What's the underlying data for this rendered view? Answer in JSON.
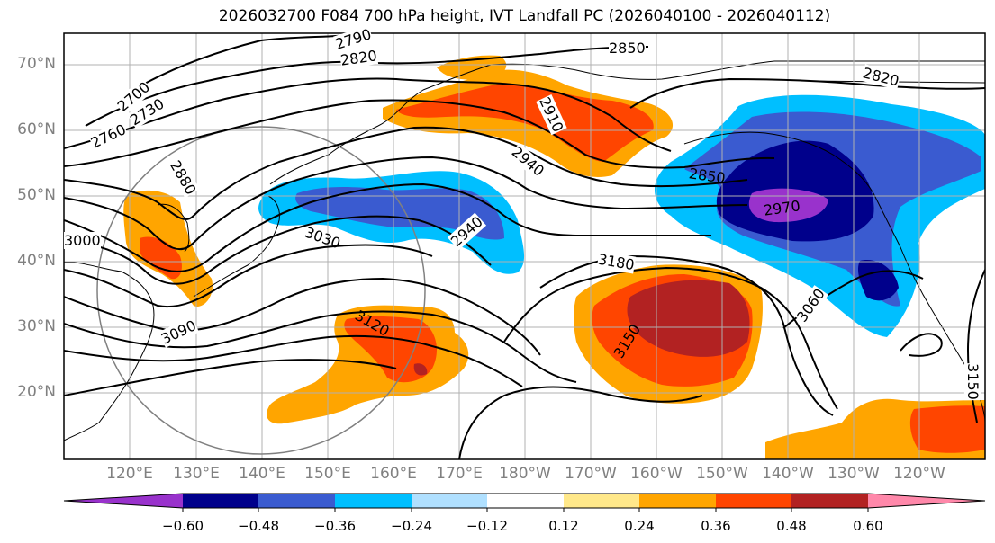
{
  "title": "2026032700 F084 700 hPa height, IVT Landfall PC (2026040100 - 2026040112)",
  "lat_labels": [
    "70°N",
    "60°N",
    "50°N",
    "40°N",
    "30°N",
    "20°N"
  ],
  "lon_labels": [
    "120°E",
    "130°E",
    "140°E",
    "150°E",
    "160°E",
    "170°E",
    "180°W",
    "170°W",
    "160°W",
    "150°W",
    "140°W",
    "130°W",
    "120°W"
  ],
  "contour_labels": [
    "2790",
    "2820",
    "2850",
    "2820",
    "2700",
    "2730",
    "2760",
    "2880",
    "2910",
    "2940",
    "2850",
    "2970",
    "3000",
    "3030",
    "2940",
    "3180",
    "3060",
    "3090",
    "3120",
    "3150",
    "3150"
  ],
  "colorbar": {
    "ticks": [
      "−0.60",
      "−0.48",
      "−0.36",
      "−0.24",
      "−0.12",
      "0.12",
      "0.24",
      "0.36",
      "0.48",
      "0.60"
    ],
    "colors": [
      "#9932cc",
      "#00008b",
      "#3a5bd0",
      "#00bfff",
      "#b0e0ff",
      "#ffffff",
      "#ffe88a",
      "#ffa500",
      "#ff4500",
      "#b22222",
      "#ff88aa"
    ]
  },
  "colors": {
    "negative_anomaly": "#00bfff",
    "positive_anomaly": "#ffa500",
    "contour": "#000000",
    "grid": "#b0b0b0"
  }
}
